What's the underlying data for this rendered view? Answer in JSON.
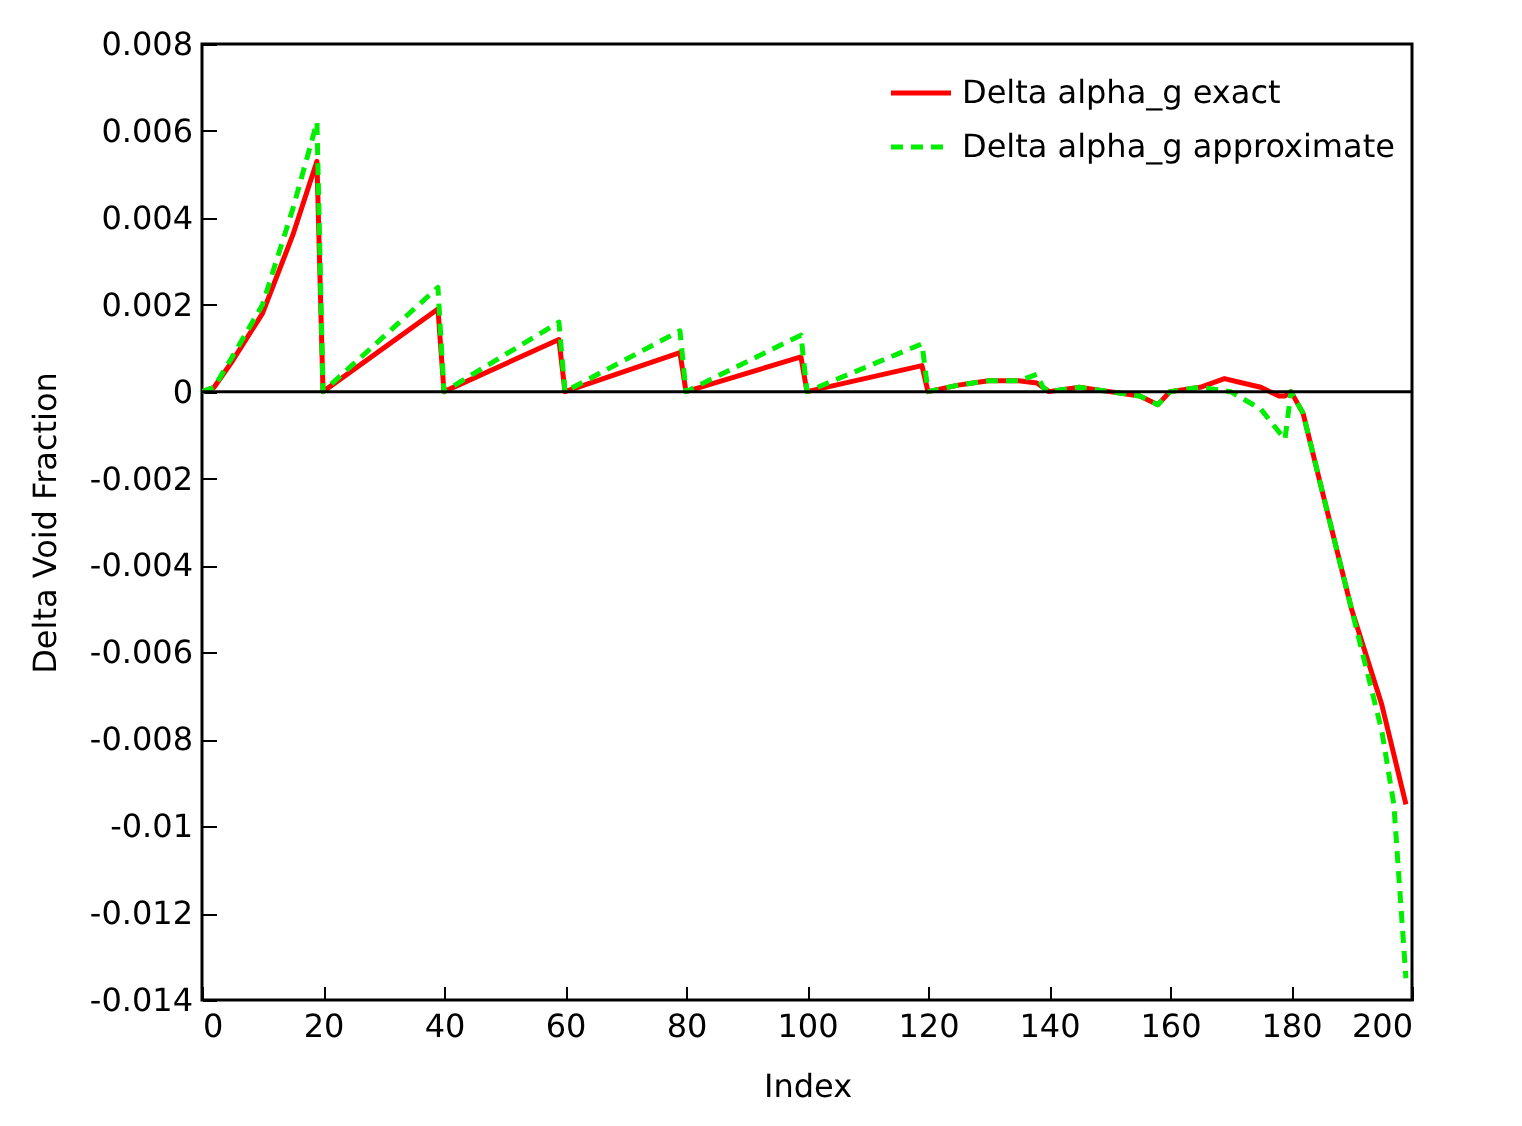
{
  "chart_data": {
    "type": "line",
    "xlabel": "Index",
    "ylabel": "Delta Void Fraction",
    "xlim": [
      0,
      200
    ],
    "xticks": [
      0,
      20,
      40,
      60,
      80,
      100,
      120,
      140,
      160,
      180,
      200
    ],
    "ylim": [
      -0.014,
      0.008
    ],
    "yticks": [
      -0.014,
      -0.012,
      -0.01,
      -0.008,
      -0.006,
      -0.004,
      -0.002,
      0,
      0.002,
      0.004,
      0.006,
      0.008
    ],
    "grid": false,
    "legend": "top right",
    "ref_lines": [
      {
        "axis": "y",
        "value": 0,
        "color": "#000000"
      }
    ],
    "series": [
      {
        "name": "Delta alpha_g exact",
        "color": "#ff0000",
        "line_style": "solid",
        "x": [
          0,
          2,
          5,
          10,
          15,
          19,
          20,
          39,
          40,
          59,
          60,
          79,
          80,
          99,
          100,
          119,
          120,
          125,
          130,
          135,
          138,
          140,
          145,
          150,
          155,
          158,
          160,
          165,
          169,
          172,
          175,
          178,
          179,
          180,
          182,
          185,
          190,
          195,
          199
        ],
        "values": [
          0,
          0.0001,
          0.0007,
          0.0018,
          0.0036,
          0.0053,
          0,
          0.0019,
          0,
          0.0012,
          0,
          0.0009,
          0,
          0.0008,
          0,
          0.0006,
          0,
          0.00015,
          0.00025,
          0.00025,
          0.0002,
          0,
          0.0001,
          0,
          -0.0001,
          -0.0003,
          0,
          0.0001,
          0.0003,
          0.0002,
          0.0001,
          -0.0001,
          -0.0001,
          0,
          -0.0005,
          -0.0022,
          -0.005,
          -0.0072,
          -0.0095
        ]
      },
      {
        "name": "Delta alpha_g approximate",
        "color": "#00ee00",
        "line_style": "dashed",
        "x": [
          0,
          2,
          5,
          10,
          15,
          19,
          20,
          39,
          40,
          59,
          60,
          79,
          80,
          99,
          100,
          119,
          120,
          125,
          130,
          135,
          138,
          139,
          140,
          145,
          150,
          155,
          158,
          160,
          165,
          170,
          175,
          179,
          180,
          182,
          185,
          190,
          195,
          197,
          199
        ],
        "values": [
          0,
          0.0001,
          0.0008,
          0.002,
          0.0042,
          0.0062,
          0,
          0.0024,
          0,
          0.0016,
          0,
          0.0014,
          0,
          0.0013,
          0,
          0.0011,
          0,
          0.00015,
          0.00025,
          0.00025,
          0.0004,
          0.0001,
          0,
          0.0001,
          0,
          -0.0001,
          -0.0003,
          0,
          0.0001,
          0,
          -0.0004,
          -0.0011,
          0,
          -0.0005,
          -0.0022,
          -0.005,
          -0.0078,
          -0.0095,
          -0.0135
        ]
      }
    ]
  }
}
